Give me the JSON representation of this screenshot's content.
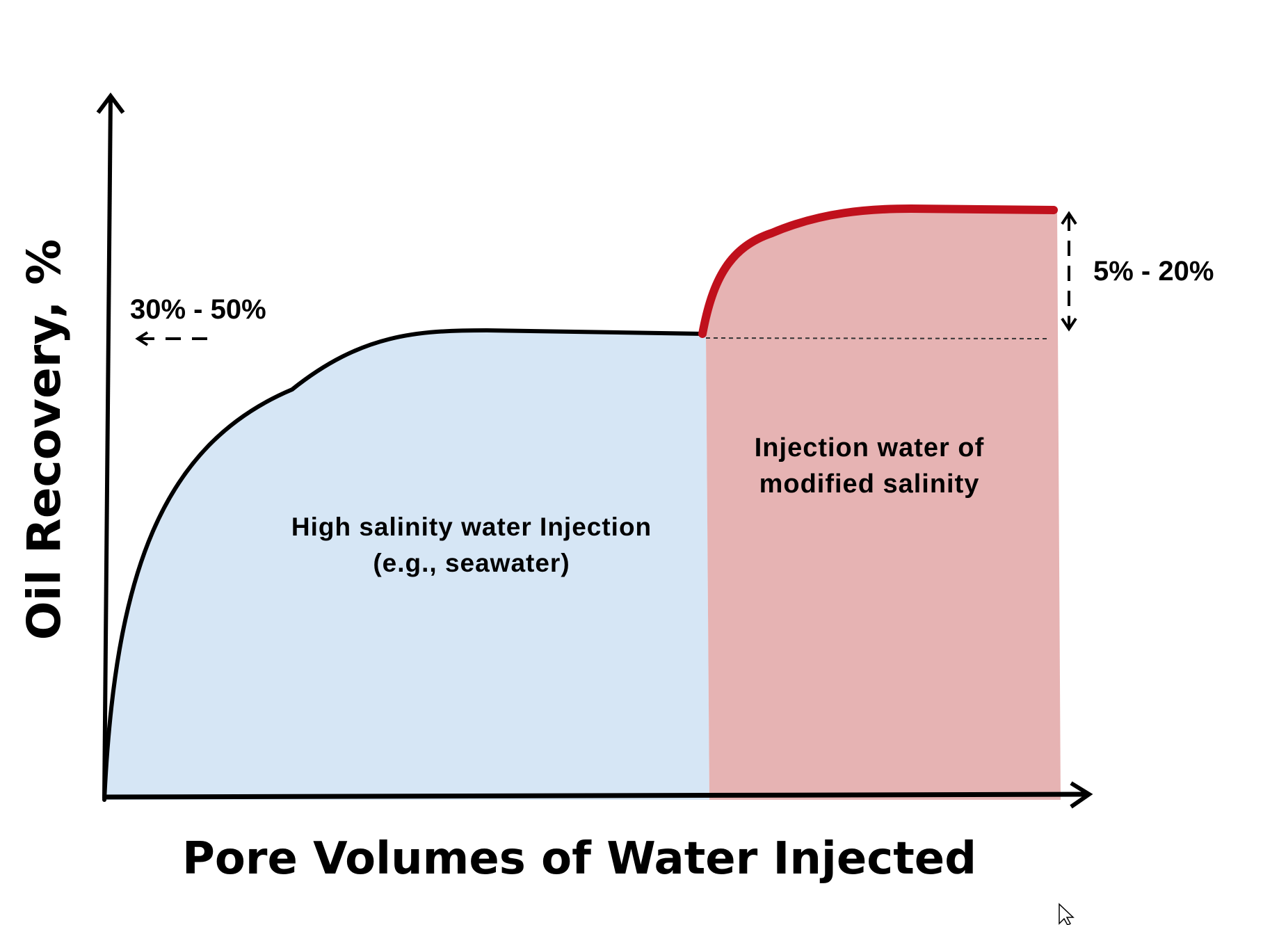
{
  "diagram": {
    "x_axis_title": "Pore Volumes of Water Injected",
    "y_axis_title": "Oil Recovery, %",
    "high_salinity_label_line1": "High salinity water Injection",
    "high_salinity_label_line2": "(e.g., seawater)",
    "modified_salinity_label_line1": "Injection water of",
    "modified_salinity_label_line2": "modified salinity",
    "base_recovery_range": "30% - 50%",
    "incremental_recovery_range": "5% - 20%"
  },
  "colors": {
    "high_salinity_fill": "#d6e6f5",
    "modified_salinity_fill": "#e6b3b3",
    "incremental_curve": "#c0101c",
    "axis": "#000000"
  }
}
